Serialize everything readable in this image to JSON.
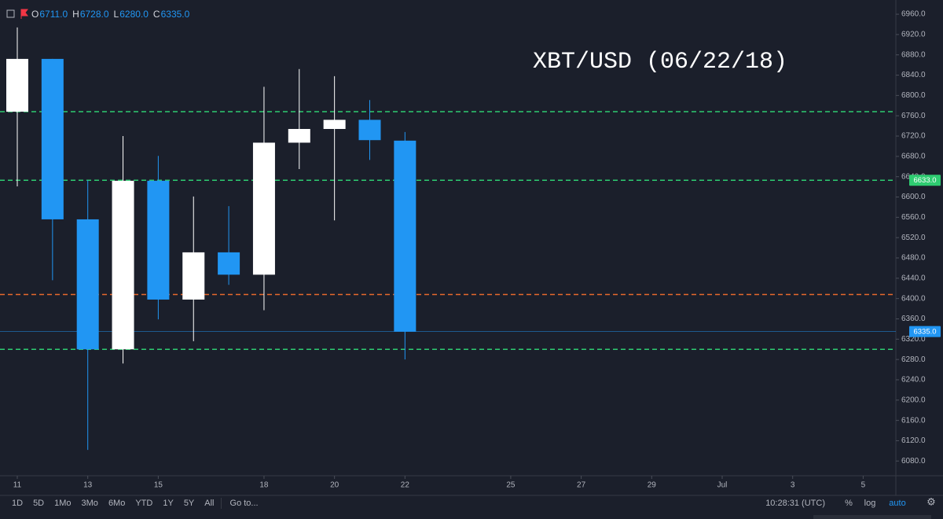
{
  "chart_data": {
    "type": "candlestick",
    "title": "XBT/USD (06/22/18)",
    "legend": {
      "items": [
        {
          "key": "O",
          "value": "6711.0"
        },
        {
          "key": "H",
          "value": "6728.0"
        },
        {
          "key": "L",
          "value": "6280.0"
        },
        {
          "key": "C",
          "value": "6335.0"
        }
      ]
    },
    "categories": [
      "11",
      null,
      "13",
      null,
      "15",
      null,
      null,
      "18",
      null,
      "20",
      null,
      "22",
      null,
      null,
      "25",
      null,
      "27",
      null,
      "29",
      null,
      "Jul",
      null,
      "3",
      null,
      "5"
    ],
    "open": [
      6768,
      6872,
      6556,
      6300,
      6632,
      6398,
      6491,
      6447,
      6707,
      6734,
      6752,
      6711,
      null,
      null,
      null,
      null,
      null,
      null,
      null,
      null,
      null,
      null,
      null,
      null,
      null
    ],
    "high": [
      6934,
      6872,
      6633,
      6720,
      6681,
      6601,
      6582,
      6817,
      6852,
      6838,
      6791,
      6728,
      null,
      null,
      null,
      null,
      null,
      null,
      null,
      null,
      null,
      null,
      null,
      null,
      null
    ],
    "low": [
      6621,
      6436,
      6102,
      6272,
      6359,
      6316,
      6427,
      6377,
      6655,
      6554,
      6673,
      6280,
      null,
      null,
      null,
      null,
      null,
      null,
      null,
      null,
      null,
      null,
      null,
      null,
      null
    ],
    "close": [
      6872,
      6556,
      6300,
      6632,
      6398,
      6491,
      6447,
      6707,
      6734,
      6752,
      6712,
      6335,
      null,
      null,
      null,
      null,
      null,
      null,
      null,
      null,
      null,
      null,
      null,
      null,
      null
    ],
    "up_color": "#ffffff",
    "down_color": "#2196f3",
    "ylim": [
      6051,
      6988
    ],
    "yticks": [
      {
        "value": 6080,
        "label": "6080.0"
      },
      {
        "value": 6120,
        "label": "6120.0"
      },
      {
        "value": 6160,
        "label": "6160.0"
      },
      {
        "value": 6200,
        "label": "6200.0"
      },
      {
        "value": 6240,
        "label": "6240.0"
      },
      {
        "value": 6280,
        "label": "6280.0"
      },
      {
        "value": 6320,
        "label": "6320.0"
      },
      {
        "value": 6360,
        "label": "6360.0"
      },
      {
        "value": 6400,
        "label": "6400.0"
      },
      {
        "value": 6440,
        "label": "6440.0"
      },
      {
        "value": 6480,
        "label": "6480.0"
      },
      {
        "value": 6520,
        "label": "6520.0"
      },
      {
        "value": 6560,
        "label": "6560.0"
      },
      {
        "value": 6600,
        "label": "6600.0"
      },
      {
        "value": 6640,
        "label": "6640.0"
      },
      {
        "value": 6680,
        "label": "6680.0"
      },
      {
        "value": 6720,
        "label": "6720.0"
      },
      {
        "value": 6760,
        "label": "6760.0"
      },
      {
        "value": 6800,
        "label": "6800.0"
      },
      {
        "value": 6840,
        "label": "6840.0"
      },
      {
        "value": 6880,
        "label": "6880.0"
      },
      {
        "value": 6920,
        "label": "6920.0"
      },
      {
        "value": 6960,
        "label": "6960.0"
      }
    ],
    "levels": [
      {
        "value": 6768,
        "color": "#2ecc71",
        "style": "dashed"
      },
      {
        "value": 6633,
        "color": "#2ecc71",
        "style": "dashed",
        "label": "6633.0"
      },
      {
        "value": 6300,
        "color": "#2ecc71",
        "style": "dashed"
      },
      {
        "value": 6408,
        "color": "#e8692c",
        "style": "dashed"
      },
      {
        "value": 6335,
        "color": "#2196f3",
        "style": "solid",
        "label": "6335.0"
      }
    ]
  },
  "toolbar": {
    "ranges": [
      "1D",
      "5D",
      "1Mo",
      "3Mo",
      "6Mo",
      "YTD",
      "1Y",
      "5Y",
      "All"
    ],
    "goto": "Go to...",
    "time": "10:28:31 (UTC)",
    "percent": "%",
    "log": "log",
    "auto": "auto"
  }
}
